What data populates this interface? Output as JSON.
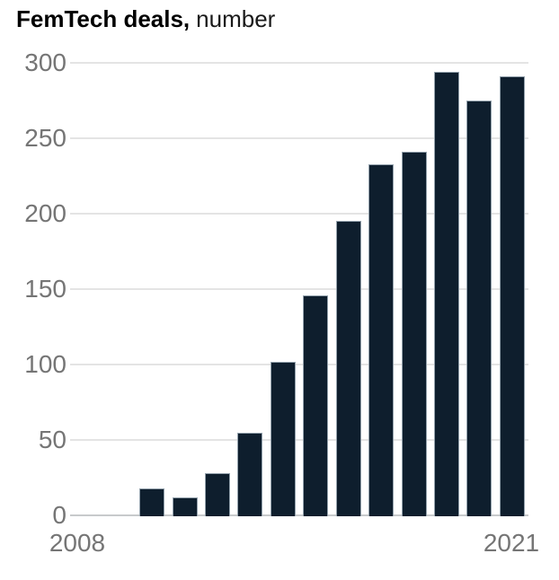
{
  "title": {
    "bold": "FemTech deals,",
    "regular": "number"
  },
  "chart_data": {
    "type": "bar",
    "title": "FemTech deals, number",
    "ylabel": "number",
    "categories": [
      "2008",
      "2009",
      "2010",
      "2011",
      "2012",
      "2013",
      "2014",
      "2015",
      "2016",
      "2017",
      "2018",
      "2019",
      "2020",
      "2021"
    ],
    "values": [
      0,
      0,
      18,
      12,
      28,
      55,
      102,
      146,
      195,
      233,
      241,
      294,
      275,
      291
    ],
    "ylim": [
      0,
      300
    ],
    "yticks": [
      0,
      50,
      100,
      150,
      200,
      250,
      300
    ],
    "xtick_labels_shown": [
      "2008",
      "2021"
    ],
    "grid": "horizontal",
    "legend": "none",
    "colors": {
      "bar": "#0e1e2d",
      "axis_label": "#757575",
      "gridline": "#e4e4e4",
      "baseline": "#c7cacc",
      "title": "#000000",
      "background": "#ffffff"
    }
  }
}
